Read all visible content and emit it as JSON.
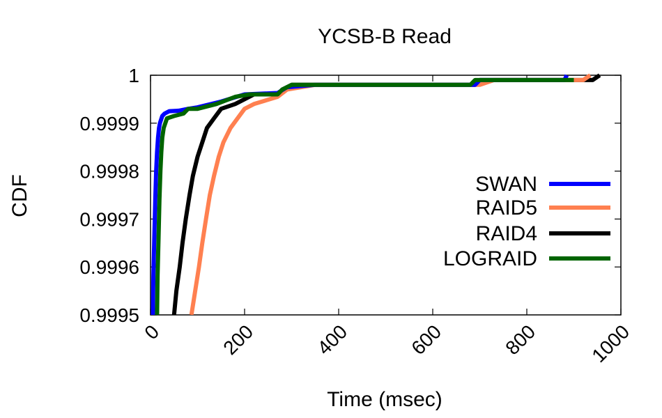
{
  "chart_data": {
    "type": "line",
    "title": "YCSB-B Read",
    "xlabel": "Time (msec)",
    "ylabel": "CDF",
    "xlim": [
      0,
      1000
    ],
    "ylim": [
      0.9995,
      1.0
    ],
    "xticks": [
      "0",
      "200",
      "400",
      "600",
      "800",
      "1000"
    ],
    "xtick_values": [
      0,
      200,
      400,
      600,
      800,
      1000
    ],
    "yticks": [
      "0.9995",
      "0.9996",
      "0.9997",
      "0.9998",
      "0.9999",
      "1"
    ],
    "ytick_values": [
      0.9995,
      0.9996,
      0.9997,
      0.9998,
      0.9999,
      1.0
    ],
    "grid": false,
    "legend_position": "right",
    "series": [
      {
        "name": "SWAN",
        "color": "#0000ff",
        "points": [
          [
            5,
            0.9995
          ],
          [
            6,
            0.99958
          ],
          [
            8,
            0.99966
          ],
          [
            10,
            0.99974
          ],
          [
            12,
            0.9998
          ],
          [
            14,
            0.99984
          ],
          [
            16,
            0.99987
          ],
          [
            18,
            0.99989
          ],
          [
            20,
            0.9999
          ],
          [
            25,
            0.999915
          ],
          [
            30,
            0.99992
          ],
          [
            40,
            0.999925
          ],
          [
            60,
            0.999926
          ],
          [
            80,
            0.99993
          ],
          [
            100,
            0.999933
          ],
          [
            150,
            0.999945
          ],
          [
            200,
            0.99996
          ],
          [
            270,
            0.999963
          ],
          [
            290,
            0.999975
          ],
          [
            350,
            0.99998
          ],
          [
            500,
            0.99998
          ],
          [
            690,
            0.99998
          ],
          [
            700,
            0.99999
          ],
          [
            880,
            0.99999
          ],
          [
            885,
            1.0
          ]
        ]
      },
      {
        "name": "RAID5",
        "color": "#ff8050",
        "points": [
          [
            87,
            0.9995
          ],
          [
            95,
            0.99955
          ],
          [
            103,
            0.9996
          ],
          [
            110,
            0.99965
          ],
          [
            118,
            0.9997
          ],
          [
            126,
            0.99975
          ],
          [
            135,
            0.99979
          ],
          [
            145,
            0.99983
          ],
          [
            155,
            0.99986
          ],
          [
            170,
            0.99989
          ],
          [
            185,
            0.99991
          ],
          [
            200,
            0.99993
          ],
          [
            220,
            0.99994
          ],
          [
            270,
            0.999955
          ],
          [
            290,
            0.99997
          ],
          [
            320,
            0.999975
          ],
          [
            350,
            0.99998
          ],
          [
            500,
            0.99998
          ],
          [
            700,
            0.99998
          ],
          [
            730,
            0.99999
          ],
          [
            920,
            0.99999
          ],
          [
            935,
            1.0
          ]
        ]
      },
      {
        "name": "RAID4",
        "color": "#000000",
        "points": [
          [
            50,
            0.9995
          ],
          [
            55,
            0.99955
          ],
          [
            62,
            0.9996
          ],
          [
            68,
            0.99965
          ],
          [
            75,
            0.9997
          ],
          [
            83,
            0.99975
          ],
          [
            90,
            0.99979
          ],
          [
            100,
            0.99983
          ],
          [
            110,
            0.99986
          ],
          [
            120,
            0.99989
          ],
          [
            135,
            0.99991
          ],
          [
            150,
            0.99993
          ],
          [
            180,
            0.99994
          ],
          [
            220,
            0.99996
          ],
          [
            270,
            0.99996
          ],
          [
            280,
            0.99997
          ],
          [
            300,
            0.99998
          ],
          [
            500,
            0.99998
          ],
          [
            690,
            0.99998
          ],
          [
            700,
            0.99999
          ],
          [
            940,
            0.99999
          ],
          [
            955,
            1.0
          ]
        ]
      },
      {
        "name": "LOGRAID",
        "color": "#006400",
        "points": [
          [
            14,
            0.9995
          ],
          [
            15,
            0.99958
          ],
          [
            17,
            0.99966
          ],
          [
            19,
            0.99974
          ],
          [
            21,
            0.9998
          ],
          [
            23,
            0.99984
          ],
          [
            25,
            0.99987
          ],
          [
            28,
            0.99989
          ],
          [
            35,
            0.99991
          ],
          [
            50,
            0.999915
          ],
          [
            70,
            0.99992
          ],
          [
            80,
            0.99993
          ],
          [
            100,
            0.99993
          ],
          [
            140,
            0.99994
          ],
          [
            180,
            0.999955
          ],
          [
            210,
            0.99996
          ],
          [
            270,
            0.99996
          ],
          [
            280,
            0.99997
          ],
          [
            300,
            0.99998
          ],
          [
            500,
            0.99998
          ],
          [
            680,
            0.99998
          ],
          [
            690,
            0.99999
          ],
          [
            880,
            0.99999
          ],
          [
            900,
            0.99999
          ]
        ]
      }
    ]
  }
}
